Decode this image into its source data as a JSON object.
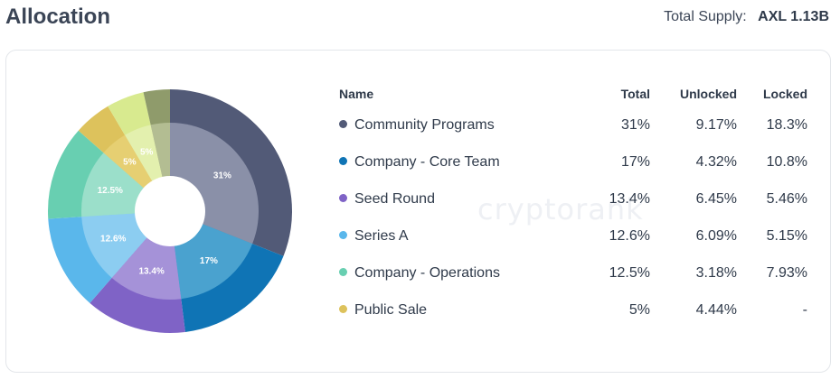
{
  "header": {
    "title": "Allocation",
    "supply_label": "Total Supply:",
    "supply_value": "AXL 1.13B"
  },
  "watermark": "cryptorank",
  "table": {
    "headers": {
      "name": "Name",
      "total": "Total",
      "unlocked": "Unlocked",
      "locked": "Locked"
    },
    "rows": [
      {
        "name": "Community Programs",
        "total": "31%",
        "unlocked": "9.17%",
        "locked": "18.3%",
        "color": "#525a77"
      },
      {
        "name": "Company - Core Team",
        "total": "17%",
        "unlocked": "4.32%",
        "locked": "10.8%",
        "color": "#0f74b5"
      },
      {
        "name": "Seed Round",
        "total": "13.4%",
        "unlocked": "6.45%",
        "locked": "5.46%",
        "color": "#7f63c6"
      },
      {
        "name": "Series A",
        "total": "12.6%",
        "unlocked": "6.09%",
        "locked": "5.15%",
        "color": "#5ab7eb"
      },
      {
        "name": "Company - Operations",
        "total": "12.5%",
        "unlocked": "3.18%",
        "locked": "7.93%",
        "color": "#68cfb1"
      },
      {
        "name": "Public Sale",
        "total": "5%",
        "unlocked": "4.44%",
        "locked": "-",
        "color": "#ddc25c"
      }
    ]
  },
  "chart_data": {
    "type": "pie",
    "subtype": "nested-donut",
    "note_layers": "inner ring = unlocked share, outer ring = locked share of each allocation",
    "series": [
      {
        "name": "Community Programs",
        "value": 31,
        "label": "31%",
        "outer_color": "#525a77",
        "inner_color": "#8a90a8"
      },
      {
        "name": "Company - Core Team",
        "value": 17,
        "label": "17%",
        "outer_color": "#0f74b5",
        "inner_color": "#4aa2cf"
      },
      {
        "name": "Seed Round",
        "value": 13.4,
        "label": "13.4%",
        "outer_color": "#7f63c6",
        "inner_color": "#a592d8"
      },
      {
        "name": "Series A",
        "value": 12.6,
        "label": "12.6%",
        "outer_color": "#5ab7eb",
        "inner_color": "#8ccdf1"
      },
      {
        "name": "Company - Operations",
        "value": 12.5,
        "label": "12.5%",
        "outer_color": "#68cfb1",
        "inner_color": "#9bdfca"
      },
      {
        "name": "Public Sale",
        "value": 5,
        "label": "5%",
        "outer_color": "#ddc25c",
        "inner_color": "#e6cf72"
      },
      {
        "name": "",
        "value": 5,
        "label": "5%",
        "outer_color": "#d8ea8f",
        "inner_color": "#e3f0ae"
      },
      {
        "name": "",
        "value": 3.5,
        "label": "",
        "outer_color": "#8f9b6b",
        "inner_color": "#b3bd92"
      }
    ]
  }
}
